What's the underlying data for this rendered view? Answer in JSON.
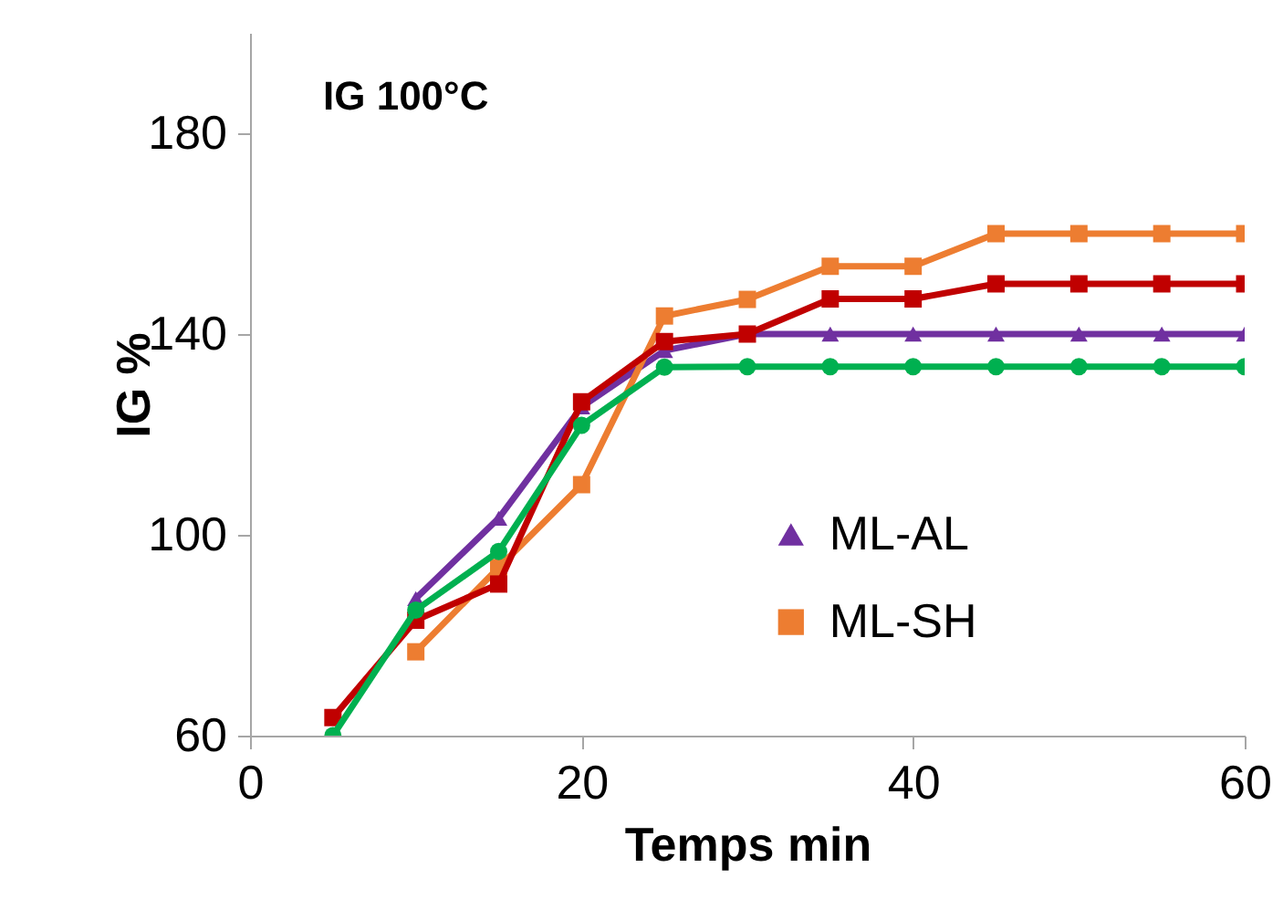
{
  "chart_data": {
    "type": "line",
    "title": "IG 100°C",
    "xlabel": "Temps min",
    "ylabel": "IG %",
    "x": [
      5,
      10,
      15,
      20,
      25,
      30,
      35,
      40,
      45,
      50,
      55,
      60
    ],
    "xlim": [
      0,
      60
    ],
    "xticks": [
      0,
      20,
      40,
      60
    ],
    "ylim": [
      60,
      200
    ],
    "yticks": [
      60,
      100,
      140,
      180
    ],
    "grid": false,
    "legend": "right",
    "series": [
      {
        "name": "ML-AL",
        "color": "#7030a0",
        "marker": "triangle",
        "values": [
          null,
          87.3,
          103.3,
          125.5,
          136.7,
          140,
          140,
          140,
          140,
          140,
          140,
          140
        ]
      },
      {
        "name": "ML-SH",
        "color": "#ed7d31",
        "marker": "square",
        "values": [
          null,
          76.7,
          93.5,
          110,
          143.6,
          146.9,
          153.5,
          153.5,
          160,
          160,
          160,
          160
        ]
      },
      {
        "color": "#c00000",
        "marker": "square",
        "values": [
          63.6,
          83,
          90.2,
          126.5,
          138.5,
          140,
          147,
          147,
          150,
          150,
          150,
          150
        ]
      },
      {
        "color": "#00b050",
        "marker": "circle",
        "values": [
          60,
          85,
          96.7,
          121.8,
          133.4,
          133.5,
          133.5,
          133.5,
          133.5,
          133.5,
          133.5,
          133.5
        ]
      }
    ]
  }
}
